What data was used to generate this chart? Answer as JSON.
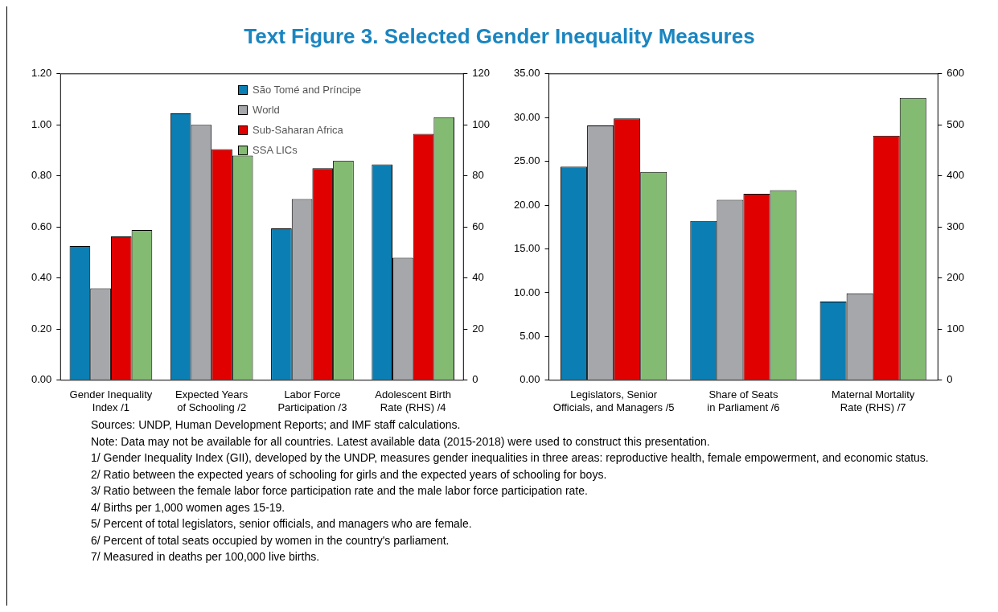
{
  "chart_data": [
    {
      "type": "bar",
      "title": "Text Figure 3. Selected Gender Inequality Measures",
      "categories": [
        "Gender Inequality Index /1",
        "Expected Years of Schooling /2",
        "Labor Force Participation /3",
        "Adolescent Birth Rate (RHS) /4"
      ],
      "series": [
        {
          "name": "São Tomé and Príncipe",
          "color": "#0b7fb3",
          "values": [
            0.525,
            1.045,
            0.595,
            null
          ]
        },
        {
          "name": "World",
          "color": "#a5a7aa",
          "values": [
            0.36,
            1.0,
            0.71,
            null
          ]
        },
        {
          "name": "Sub-Saharan Africa",
          "color": "#e00000",
          "values": [
            0.563,
            0.905,
            0.83,
            null
          ]
        },
        {
          "name": "SSA LICs",
          "color": "#84bb73",
          "values": [
            0.588,
            0.88,
            0.86,
            null
          ]
        },
        {
          "color": "#0b7fb3",
          "axis": "y2",
          "values": [
            null,
            null,
            null,
            84.5
          ]
        },
        {
          "color": "#a5a7aa",
          "axis": "y2",
          "values": [
            null,
            null,
            null,
            48
          ]
        },
        {
          "color": "#e00000",
          "axis": "y2",
          "values": [
            null,
            null,
            null,
            96.5
          ]
        },
        {
          "color": "#84bb73",
          "axis": "y2",
          "values": [
            null,
            null,
            null,
            103
          ]
        }
      ],
      "ylim": [
        0,
        1.2
      ],
      "yticks": [
        {
          "value": 0,
          "label": "0.00"
        },
        {
          "value": 0.2,
          "label": "0.20"
        },
        {
          "value": 0.4,
          "label": "0.40"
        },
        {
          "value": 0.6,
          "label": "0.60"
        },
        {
          "value": 0.8,
          "label": "0.80"
        },
        {
          "value": 1.0,
          "label": "1.00"
        },
        {
          "value": 1.2,
          "label": "1.20"
        }
      ],
      "y2lim": [
        0,
        120
      ],
      "y2ticks": [
        0,
        20,
        40,
        60,
        80,
        100,
        120
      ],
      "legend": "top right",
      "annotations": [
        "Sources: UNDP, Human Development Reports; and IMF staff calculations.",
        "Note: Data may not be available for all countries. Latest available data (2015-2018) were used to construct this presentation.",
        "1/ Gender Inequality Index (GII), developed by the UNDP, measures gender inequalities in three areas: reproductive health, female empowerment, and economic status.",
        "2/ Ratio between the expected years of schooling for girls and the expected years of schooling for boys.",
        "3/ Ratio between the female labor force participation rate and the male labor force participation rate.",
        "4/ Births per 1,000 women ages 15-19.",
        "5/ Percent of total legislators, senior officials, and managers who are female.",
        "6/ Percent of total seats occupied by women in the country's parliament.",
        "7/ Measured in deaths per 100,000 live births."
      ]
    },
    {
      "type": "bar",
      "categories": [
        "Legislators, Senior Officials, and Managers /5",
        "Share of Seats in Parliament /6",
        "Maternal Mortality Rate (RHS) /7"
      ],
      "series": [
        {
          "color": "#0b7fb3",
          "values": [
            24.4,
            18.2,
            null
          ]
        },
        {
          "color": "#a5a7aa",
          "values": [
            29.1,
            20.6,
            null
          ]
        },
        {
          "color": "#e00000",
          "values": [
            29.9,
            21.3,
            null
          ]
        },
        {
          "color": "#84bb73",
          "values": [
            23.8,
            21.7,
            null
          ]
        },
        {
          "color": "#0b7fb3",
          "axis": "y2",
          "values": [
            null,
            null,
            154
          ]
        },
        {
          "color": "#a5a7aa",
          "axis": "y2",
          "values": [
            null,
            null,
            170
          ]
        },
        {
          "color": "#e00000",
          "axis": "y2",
          "values": [
            null,
            null,
            479
          ]
        },
        {
          "color": "#84bb73",
          "axis": "y2",
          "values": [
            null,
            null,
            553
          ]
        }
      ],
      "ylim": [
        0,
        35
      ],
      "yticks": [
        {
          "value": 0,
          "label": "0.00"
        },
        {
          "value": 5,
          "label": "5.00"
        },
        {
          "value": 10,
          "label": "10.00"
        },
        {
          "value": 15,
          "label": "15.00"
        },
        {
          "value": 20,
          "label": "20.00"
        },
        {
          "value": 25,
          "label": "25.00"
        },
        {
          "value": 30,
          "label": "30.00"
        },
        {
          "value": 35,
          "label": "35.00"
        }
      ],
      "y2lim": [
        0,
        600
      ],
      "y2ticks": [
        0,
        100,
        200,
        300,
        400,
        500,
        600
      ]
    }
  ]
}
